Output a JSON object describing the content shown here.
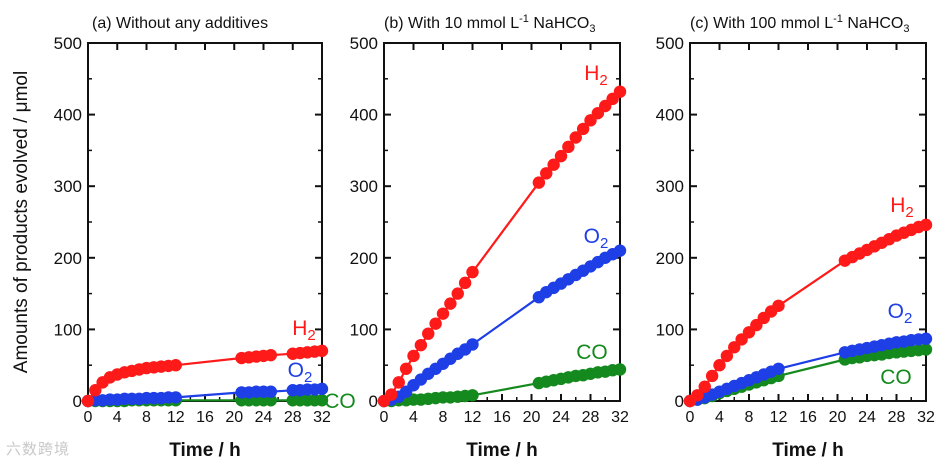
{
  "figure": {
    "ylabel": "Amounts of products evolved / μmol",
    "watermark": "六数跨境"
  },
  "colors": {
    "H2": "#ff1a1a",
    "O2": "#1e3ee6",
    "CO": "#148a1e"
  },
  "chart_data": [
    {
      "type": "scatter",
      "title": "(a) Without any additives",
      "xlabel": "Time / h",
      "ylabel": "Amounts of products evolved / μmol",
      "xlim": [
        0,
        32
      ],
      "ylim": [
        0,
        500
      ],
      "xticks": [
        0,
        4,
        8,
        12,
        16,
        20,
        24,
        28,
        32
      ],
      "yticks": [
        0,
        100,
        200,
        300,
        400,
        500
      ],
      "x": [
        0,
        1,
        2,
        3,
        4,
        5,
        6,
        7,
        8,
        9,
        10,
        11,
        12,
        21,
        22,
        23,
        24,
        25,
        28,
        29,
        30,
        31,
        32
      ],
      "series": [
        {
          "name": "H2",
          "label_main": "H",
          "label_sub": "2",
          "values": [
            0,
            15,
            26,
            33,
            37,
            40,
            42,
            44,
            46,
            47,
            48,
            49,
            50,
            60,
            61,
            62,
            63,
            64,
            66,
            67,
            68,
            69,
            70
          ]
        },
        {
          "name": "O2",
          "label_main": "O",
          "label_sub": "2",
          "values": [
            0,
            1,
            1,
            2,
            2,
            3,
            3,
            3,
            4,
            4,
            4,
            5,
            5,
            12,
            12,
            13,
            13,
            13,
            15,
            15,
            16,
            16,
            17
          ]
        },
        {
          "name": "CO",
          "label_main": "CO",
          "label_sub": "",
          "values": [
            0,
            0,
            0,
            0,
            0,
            0,
            1,
            1,
            1,
            1,
            1,
            1,
            1,
            1,
            1,
            1,
            1,
            1,
            1,
            1,
            1,
            1,
            1
          ]
        }
      ]
    },
    {
      "type": "scatter",
      "title": "(b) With 10 mmol L",
      "title_sup": "-1",
      "title_tail": " NaHCO",
      "title_sub": "3",
      "xlabel": "Time / h",
      "xlim": [
        0,
        32
      ],
      "ylim": [
        0,
        500
      ],
      "xticks": [
        0,
        4,
        8,
        12,
        16,
        20,
        24,
        28,
        32
      ],
      "yticks": [
        0,
        100,
        200,
        300,
        400,
        500
      ],
      "x": [
        0,
        1,
        2,
        3,
        4,
        5,
        6,
        7,
        8,
        9,
        10,
        11,
        12,
        21,
        22,
        23,
        24,
        25,
        26,
        27,
        28,
        29,
        30,
        31,
        32
      ],
      "series": [
        {
          "name": "H2",
          "label_main": "H",
          "label_sub": "2",
          "values": [
            0,
            9,
            26,
            45,
            63,
            78,
            94,
            108,
            122,
            136,
            150,
            165,
            180,
            305,
            318,
            330,
            342,
            355,
            368,
            380,
            392,
            402,
            412,
            422,
            432
          ]
        },
        {
          "name": "O2",
          "label_main": "O",
          "label_sub": "2",
          "values": [
            0,
            2,
            6,
            13,
            22,
            30,
            38,
            45,
            52,
            59,
            66,
            72,
            79,
            145,
            152,
            158,
            164,
            170,
            176,
            182,
            188,
            194,
            200,
            205,
            210
          ]
        },
        {
          "name": "CO",
          "label_main": "CO",
          "label_sub": "",
          "values": [
            0,
            0,
            1,
            1,
            2,
            2,
            3,
            4,
            5,
            5,
            6,
            7,
            8,
            25,
            27,
            29,
            31,
            33,
            35,
            36,
            38,
            40,
            41,
            43,
            44
          ]
        }
      ]
    },
    {
      "type": "scatter",
      "title": "(c) With 100 mmol L",
      "title_sup": "-1",
      "title_tail": " NaHCO",
      "title_sub": "3",
      "xlabel": "Time / h",
      "xlim": [
        0,
        32
      ],
      "ylim": [
        0,
        500
      ],
      "xticks": [
        0,
        4,
        8,
        12,
        16,
        20,
        24,
        28,
        32
      ],
      "yticks": [
        0,
        100,
        200,
        300,
        400,
        500
      ],
      "x": [
        0,
        1,
        2,
        3,
        4,
        5,
        6,
        7,
        8,
        9,
        10,
        11,
        12,
        21,
        22,
        23,
        24,
        25,
        26,
        27,
        28,
        29,
        30,
        31,
        32
      ],
      "series": [
        {
          "name": "H2",
          "label_main": "H",
          "label_sub": "2",
          "values": [
            0,
            8,
            20,
            35,
            50,
            63,
            75,
            86,
            96,
            106,
            116,
            125,
            133,
            196,
            201,
            206,
            211,
            216,
            221,
            226,
            231,
            235,
            239,
            243,
            246
          ]
        },
        {
          "name": "O2",
          "label_main": "O",
          "label_sub": "2",
          "values": [
            0,
            2,
            5,
            9,
            13,
            17,
            21,
            25,
            29,
            33,
            37,
            41,
            45,
            68,
            70,
            72,
            74,
            76,
            78,
            80,
            82,
            83,
            85,
            86,
            87
          ]
        },
        {
          "name": "CO",
          "label_main": "CO",
          "label_sub": "",
          "values": [
            0,
            2,
            4,
            7,
            11,
            14,
            17,
            20,
            23,
            26,
            29,
            32,
            35,
            58,
            60,
            61,
            63,
            64,
            65,
            67,
            68,
            69,
            70,
            71,
            72
          ]
        }
      ]
    }
  ]
}
